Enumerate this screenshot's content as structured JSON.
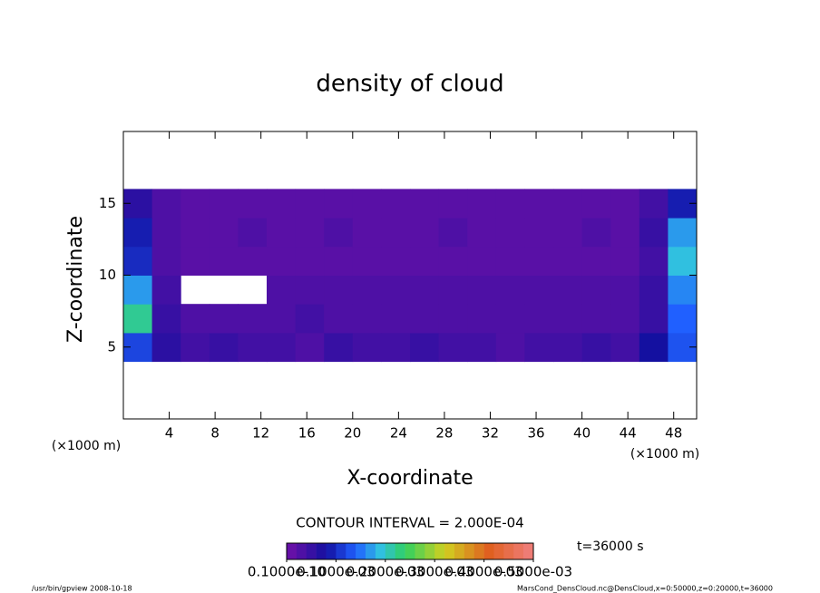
{
  "chart_data": {
    "type": "heatmap",
    "title": "density of cloud",
    "xlabel": "X-coordinate",
    "ylabel": "Z-coordinate",
    "unit_label": "(×1000 m)",
    "xlim": [
      0,
      50
    ],
    "ylim": [
      0,
      20
    ],
    "xticks": [
      4,
      8,
      12,
      16,
      20,
      24,
      28,
      32,
      36,
      40,
      44,
      48
    ],
    "yticks": [
      5,
      10,
      15
    ],
    "x": [
      1.25,
      3.75,
      6.25,
      8.75,
      11.25,
      13.75,
      16.25,
      18.75,
      21.25,
      23.75,
      26.25,
      28.75,
      31.25,
      33.75,
      36.25,
      38.75,
      41.25,
      43.75,
      46.25,
      48.75
    ],
    "y": [
      1,
      3,
      5,
      7,
      9,
      11,
      13,
      15,
      17,
      19
    ],
    "values": [
      [
        null,
        null,
        null,
        null,
        null,
        null,
        null,
        null,
        null,
        null,
        null,
        null,
        null,
        null,
        null,
        null,
        null,
        null,
        null,
        null
      ],
      [
        null,
        null,
        null,
        null,
        null,
        null,
        null,
        null,
        null,
        null,
        null,
        null,
        null,
        null,
        null,
        null,
        null,
        null,
        null,
        null
      ],
      [
        0.00012,
        6e-05,
        4e-05,
        5e-05,
        4e-05,
        4e-05,
        3e-05,
        5e-05,
        4e-05,
        4e-05,
        5e-05,
        4e-05,
        4e-05,
        3e-05,
        4e-05,
        4e-05,
        5e-05,
        4e-05,
        8e-05,
        0.00013
      ],
      [
        0.00022,
        5e-05,
        3e-05,
        3e-05,
        3e-05,
        3e-05,
        4e-05,
        3e-05,
        3e-05,
        3e-05,
        3e-05,
        3e-05,
        3e-05,
        3e-05,
        3e-05,
        3e-05,
        3e-05,
        3e-05,
        5e-05,
        0.00014
      ],
      [
        0.00017,
        4e-05,
        null,
        null,
        null,
        3e-05,
        3e-05,
        3e-05,
        3e-05,
        3e-05,
        3e-05,
        3e-05,
        3e-05,
        3e-05,
        3e-05,
        3e-05,
        3e-05,
        3e-05,
        5e-05,
        0.00016
      ],
      [
        0.0001,
        3e-05,
        2e-05,
        2e-05,
        2e-05,
        2e-05,
        2e-05,
        2e-05,
        2e-05,
        2e-05,
        2e-05,
        2e-05,
        2e-05,
        2e-05,
        2e-05,
        2e-05,
        2e-05,
        2e-05,
        4e-05,
        0.00019
      ],
      [
        9e-05,
        3e-05,
        2e-05,
        2e-05,
        3e-05,
        2e-05,
        2e-05,
        3e-05,
        2e-05,
        2e-05,
        2e-05,
        3e-05,
        2e-05,
        2e-05,
        2e-05,
        2e-05,
        3e-05,
        2e-05,
        5e-05,
        0.00017
      ],
      [
        6e-05,
        3e-05,
        2e-05,
        2e-05,
        2e-05,
        2e-05,
        2e-05,
        2e-05,
        2e-05,
        2e-05,
        2e-05,
        2e-05,
        2e-05,
        2e-05,
        2e-05,
        2e-05,
        2e-05,
        2e-05,
        4e-05,
        9e-05
      ],
      [
        null,
        null,
        null,
        null,
        null,
        null,
        null,
        null,
        null,
        null,
        null,
        null,
        null,
        null,
        null,
        null,
        null,
        null,
        null,
        null
      ],
      [
        null,
        null,
        null,
        null,
        null,
        null,
        null,
        null,
        null,
        null,
        null,
        null,
        null,
        null,
        null,
        null,
        null,
        null,
        null,
        null
      ]
    ],
    "colorbar": {
      "lim": [
        0,
        0.0005
      ],
      "ticks": [
        {
          "value": 1e-11,
          "label": "0.1000e-10"
        },
        {
          "value": 0.0001,
          "label": "0.1000e-03"
        },
        {
          "value": 0.0002,
          "label": "0.2000e-03"
        },
        {
          "value": 0.0003,
          "label": "0.3000e-03"
        },
        {
          "value": 0.0004,
          "label": "0.4000e-03"
        },
        {
          "value": 0.0005,
          "label": "0.5000e-03"
        }
      ]
    },
    "contour_interval": "CONTOUR INTERVAL = 2.000E-04",
    "time_label": "t=36000 s",
    "footer_left": "/usr/bin/gpview   2008-10-18",
    "footer_right": "MarsCond_DensCloud.nc@DensCloud,x=0:50000,z=0:20000,t=36000"
  }
}
